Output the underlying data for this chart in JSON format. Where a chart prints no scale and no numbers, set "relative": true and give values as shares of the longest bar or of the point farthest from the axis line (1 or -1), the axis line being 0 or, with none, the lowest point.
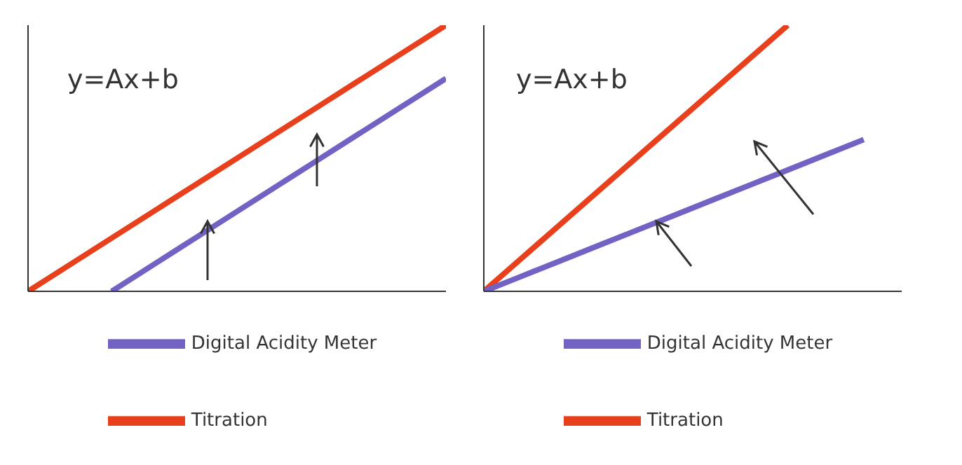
{
  "chart_data": [
    {
      "type": "line",
      "relative": true,
      "categories": [
        null,
        null,
        null,
        null,
        null,
        null,
        null,
        null,
        null,
        null,
        null
      ],
      "legend": "bottom",
      "annotations": [
        "y=Ax+b"
      ],
      "series": [
        {
          "name": "Titration",
          "color": "#e8401c",
          "values": [
            0,
            0.1,
            0.2,
            0.3,
            0.4,
            0.5,
            0.6,
            0.7,
            0.8,
            0.9,
            1
          ]
        },
        {
          "name": "Digital Acidity Meter",
          "color": "#7262c4",
          "values": [
            null,
            null,
            0,
            0.1,
            0.2,
            0.3,
            0.4,
            0.5,
            0.6,
            0.7,
            0.8
          ]
        }
      ]
    },
    {
      "type": "line",
      "relative": true,
      "categories": [
        null,
        null,
        null,
        null,
        null,
        null,
        null,
        null,
        null,
        null,
        null,
        null
      ],
      "legend": "bottom",
      "annotations": [
        "y=Ax+b"
      ],
      "series": [
        {
          "name": "Titration",
          "color": "#e8401c",
          "values": [
            0,
            0.125,
            0.25,
            0.375,
            0.5,
            0.625,
            0.75,
            0.875,
            1,
            null,
            null,
            null
          ]
        },
        {
          "name": "Digital Acidity Meter",
          "color": "#7262c4",
          "values": [
            0,
            0.057,
            0.114,
            0.171,
            0.228,
            0.285,
            0.342,
            0.399,
            0.456,
            0.513,
            0.57,
            null
          ]
        }
      ]
    }
  ]
}
